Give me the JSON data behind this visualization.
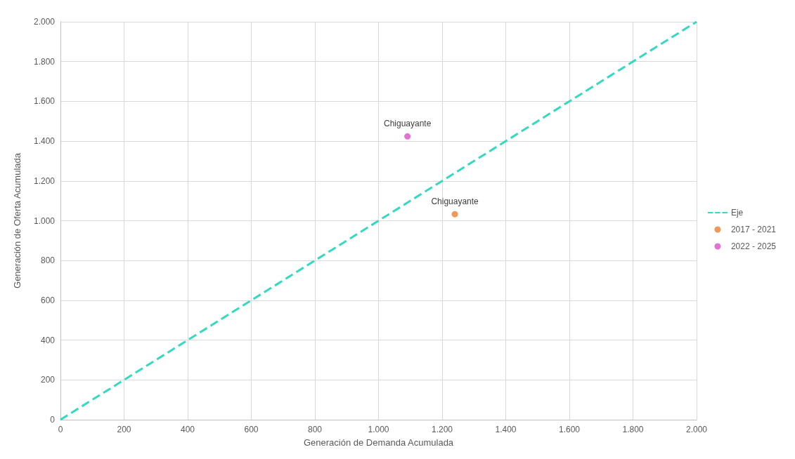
{
  "chart_data": {
    "type": "scatter",
    "xlabel": "Generación de Demanda Acumulada",
    "ylabel": "Generación de Oferta Acumulada",
    "xlim": [
      0,
      2000
    ],
    "ylim": [
      0,
      2000
    ],
    "xticks": [
      0,
      200,
      400,
      600,
      800,
      {
        "value": 1000,
        "label": "1.000"
      },
      {
        "value": 1200,
        "label": "1.200"
      },
      {
        "value": 1400,
        "label": "1.400"
      },
      {
        "value": 1600,
        "label": "1.600"
      },
      {
        "value": 1800,
        "label": "1.800"
      },
      {
        "value": 2000,
        "label": "2.000"
      }
    ],
    "yticks": [
      0,
      200,
      400,
      600,
      800,
      {
        "value": 1000,
        "label": "1.000"
      },
      {
        "value": 1200,
        "label": "1.200"
      },
      {
        "value": 1400,
        "label": "1.400"
      },
      {
        "value": 1600,
        "label": "1.600"
      },
      {
        "value": 1800,
        "label": "1.800"
      },
      {
        "value": 2000,
        "label": "2.000"
      }
    ],
    "series": [
      {
        "name": "Eje",
        "type": "line",
        "line_style": "dashed",
        "marker": "none",
        "color": "#33d9c1",
        "x": [
          0,
          2000
        ],
        "values": [
          0,
          2000
        ]
      },
      {
        "name": "2017 - 2021",
        "marker": "circle",
        "color": "#ed7d31",
        "x": [
          1240
        ],
        "values": [
          1033
        ]
      },
      {
        "name": "2022 - 2025",
        "marker": "circle",
        "color": "#d94fc8",
        "x": [
          1091
        ],
        "values": [
          1424
        ]
      }
    ],
    "annotations": [
      {
        "text": "Chiguayante",
        "x": 1240,
        "y": 1033
      },
      {
        "text": "Chiguayante",
        "x": 1091,
        "y": 1424
      }
    ],
    "grid": true,
    "legend": "right"
  }
}
